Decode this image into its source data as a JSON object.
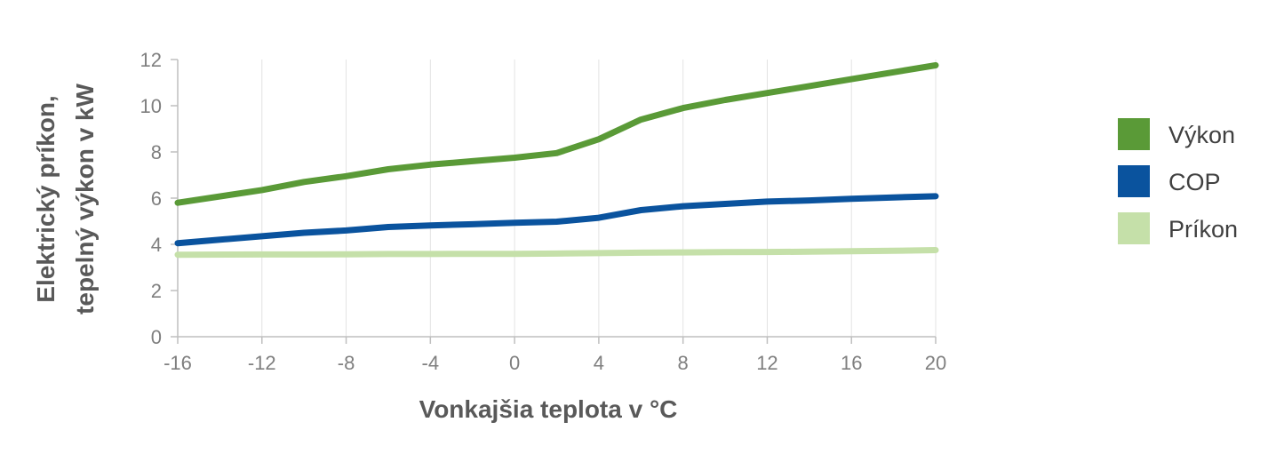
{
  "chart_data": {
    "type": "line",
    "xlabel": "Vonkajšia teplota v °C",
    "ylabel_lines": [
      "Elektrický príkon,",
      "tepelný výkon v kW"
    ],
    "xlim": [
      -16,
      20
    ],
    "ylim": [
      0,
      12
    ],
    "xticks": [
      "-16",
      "-12",
      "-8",
      "-4",
      "0",
      "4",
      "8",
      "12",
      "16",
      "20"
    ],
    "yticks": [
      "0",
      "2",
      "4",
      "6",
      "8",
      "10",
      "12"
    ],
    "grid": "vertical",
    "legend_position": "right",
    "x": [
      -16,
      -12,
      -10,
      -8,
      -6,
      -4,
      -2,
      0,
      2,
      4,
      6,
      8,
      10,
      12,
      14,
      16,
      18,
      20
    ],
    "series": [
      {
        "name": "Výkon",
        "color": "#5a9a37",
        "values": [
          5.8,
          6.35,
          6.7,
          6.95,
          7.25,
          7.45,
          7.6,
          7.75,
          7.95,
          8.55,
          9.4,
          9.9,
          10.25,
          10.55,
          10.85,
          11.15,
          11.45,
          11.75
        ]
      },
      {
        "name": "COP",
        "color": "#0a539e",
        "values": [
          4.05,
          4.35,
          4.5,
          4.6,
          4.75,
          4.82,
          4.87,
          4.93,
          4.98,
          5.15,
          5.48,
          5.65,
          5.75,
          5.85,
          5.9,
          5.97,
          6.03,
          6.08
        ]
      },
      {
        "name": "Príkon",
        "color": "#c5e0a9",
        "values": [
          3.55,
          3.56,
          3.56,
          3.57,
          3.58,
          3.58,
          3.59,
          3.59,
          3.6,
          3.62,
          3.64,
          3.65,
          3.66,
          3.67,
          3.68,
          3.7,
          3.72,
          3.75
        ]
      }
    ]
  }
}
